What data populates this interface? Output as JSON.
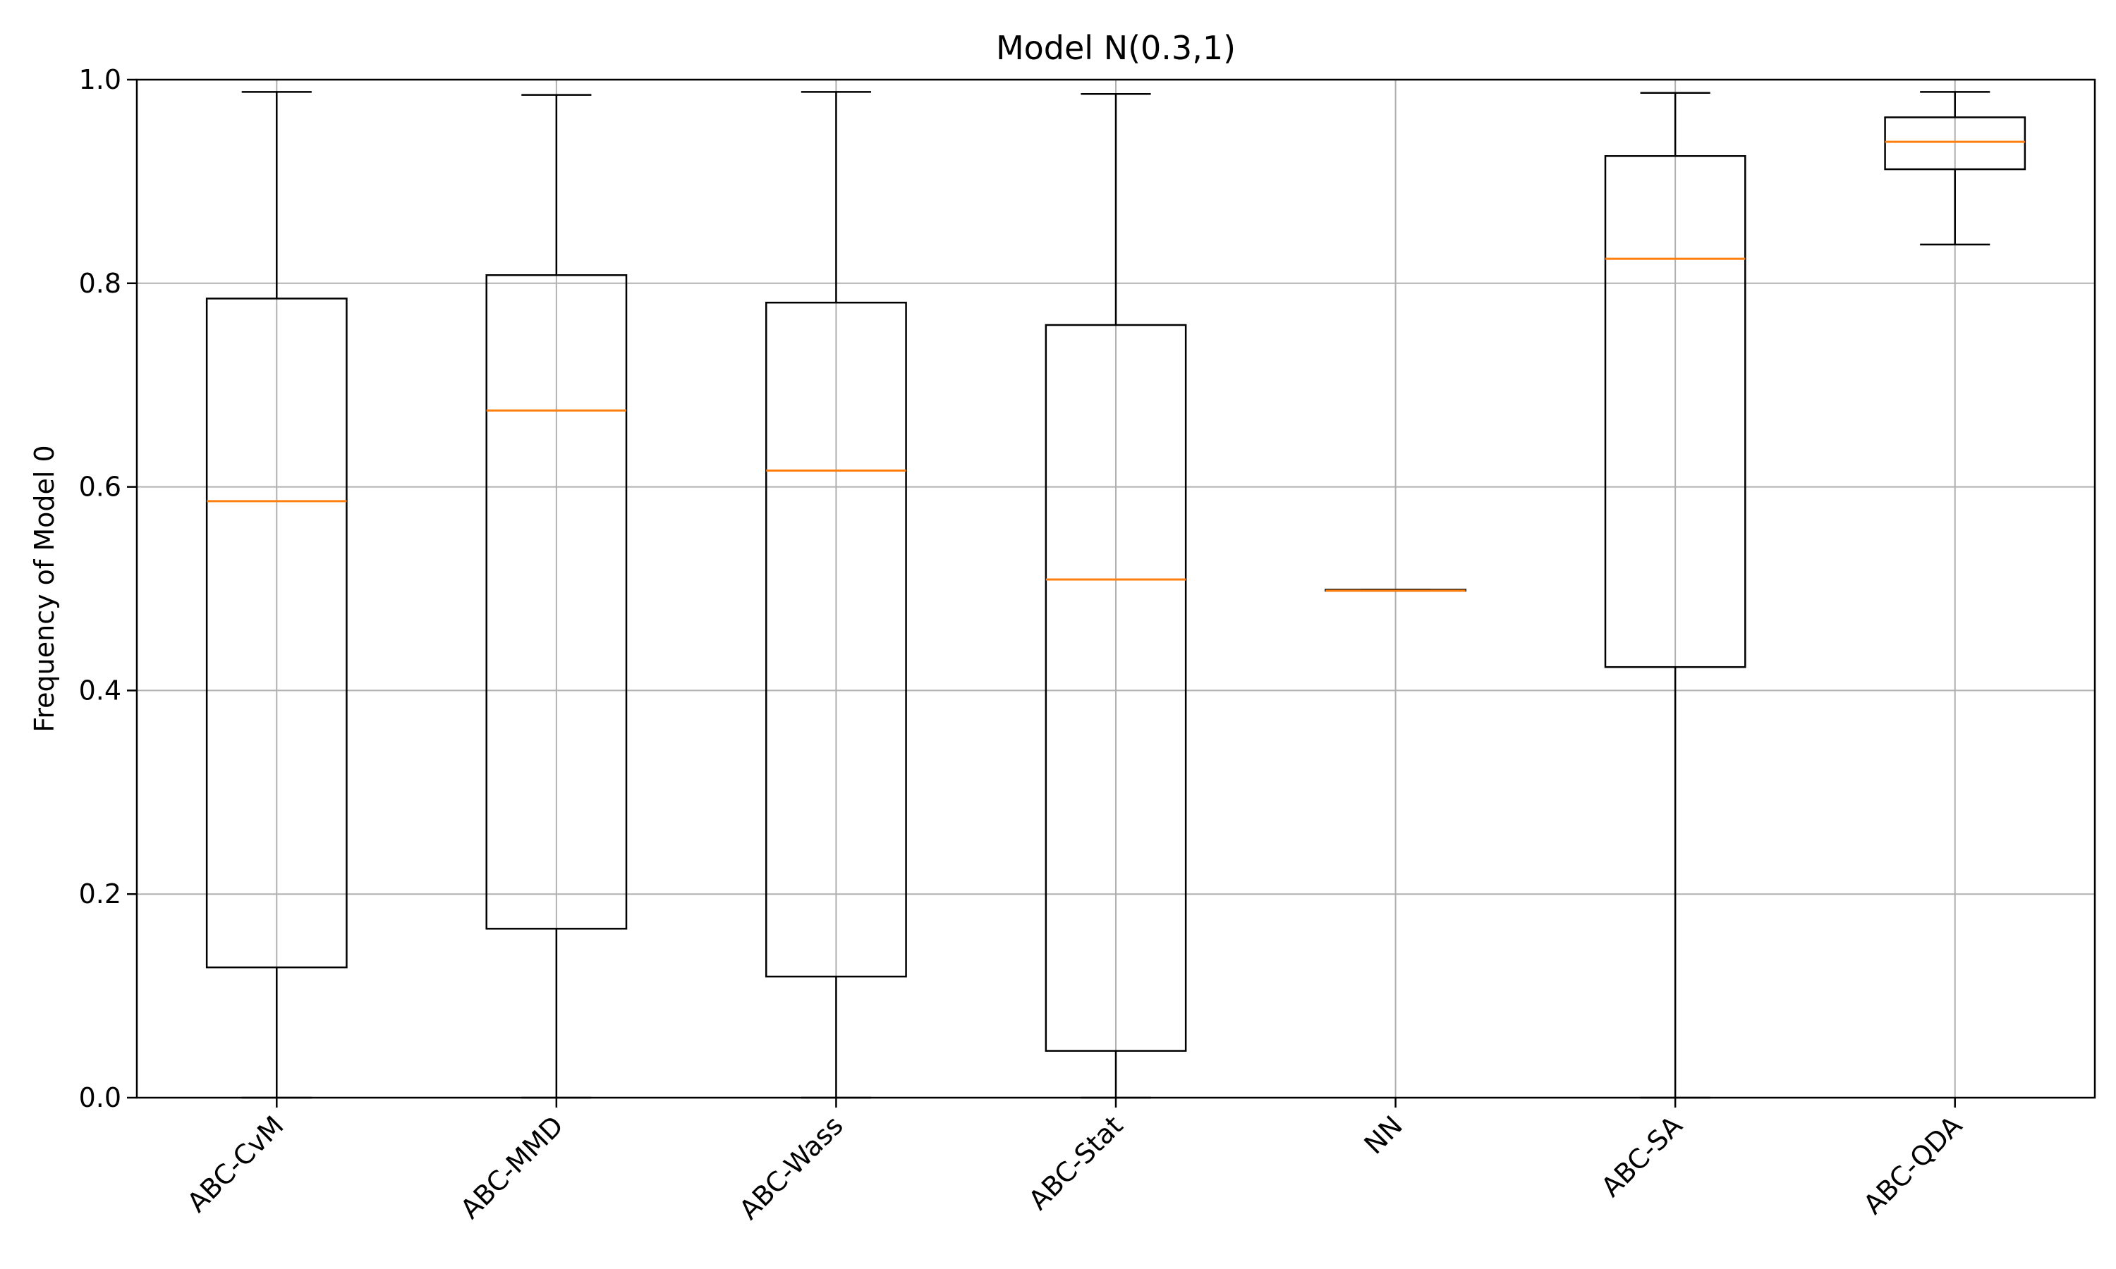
{
  "chart_data": {
    "type": "box",
    "title": "Model N(0.3,1)",
    "xlabel": "",
    "ylabel": "Frequency of Model 0",
    "ylim": [
      0.0,
      1.0
    ],
    "yticks": [
      "0.0",
      "0.2",
      "0.4",
      "0.6",
      "0.8",
      "1.0"
    ],
    "grid": true,
    "categories": [
      "ABC-CvM",
      "ABC-MMD",
      "ABC-Wass",
      "ABC-Stat",
      "NN",
      "ABC-SA",
      "ABC-QDA"
    ],
    "boxes": [
      {
        "label": "ABC-CvM",
        "whisker_low": 0.0,
        "q1": 0.128,
        "median": 0.586,
        "q3": 0.785,
        "whisker_high": 0.988
      },
      {
        "label": "ABC-MMD",
        "whisker_low": 0.0,
        "q1": 0.166,
        "median": 0.675,
        "q3": 0.808,
        "whisker_high": 0.985
      },
      {
        "label": "ABC-Wass",
        "whisker_low": 0.0,
        "q1": 0.119,
        "median": 0.616,
        "q3": 0.781,
        "whisker_high": 0.988
      },
      {
        "label": "ABC-Stat",
        "whisker_low": 0.0,
        "q1": 0.046,
        "median": 0.509,
        "q3": 0.759,
        "whisker_high": 0.986
      },
      {
        "label": "NN",
        "whisker_low": 0.498,
        "q1": 0.498,
        "median": 0.498,
        "q3": 0.499,
        "whisker_high": 0.499
      },
      {
        "label": "ABC-SA",
        "whisker_low": 0.0,
        "q1": 0.423,
        "median": 0.824,
        "q3": 0.925,
        "whisker_high": 0.987
      },
      {
        "label": "ABC-QDA",
        "whisker_low": 0.838,
        "q1": 0.912,
        "median": 0.939,
        "q3": 0.963,
        "whisker_high": 0.988
      }
    ],
    "colors": {
      "box": "#000000",
      "median": "#ff7f0e",
      "grid": "#b0b0b0"
    }
  }
}
